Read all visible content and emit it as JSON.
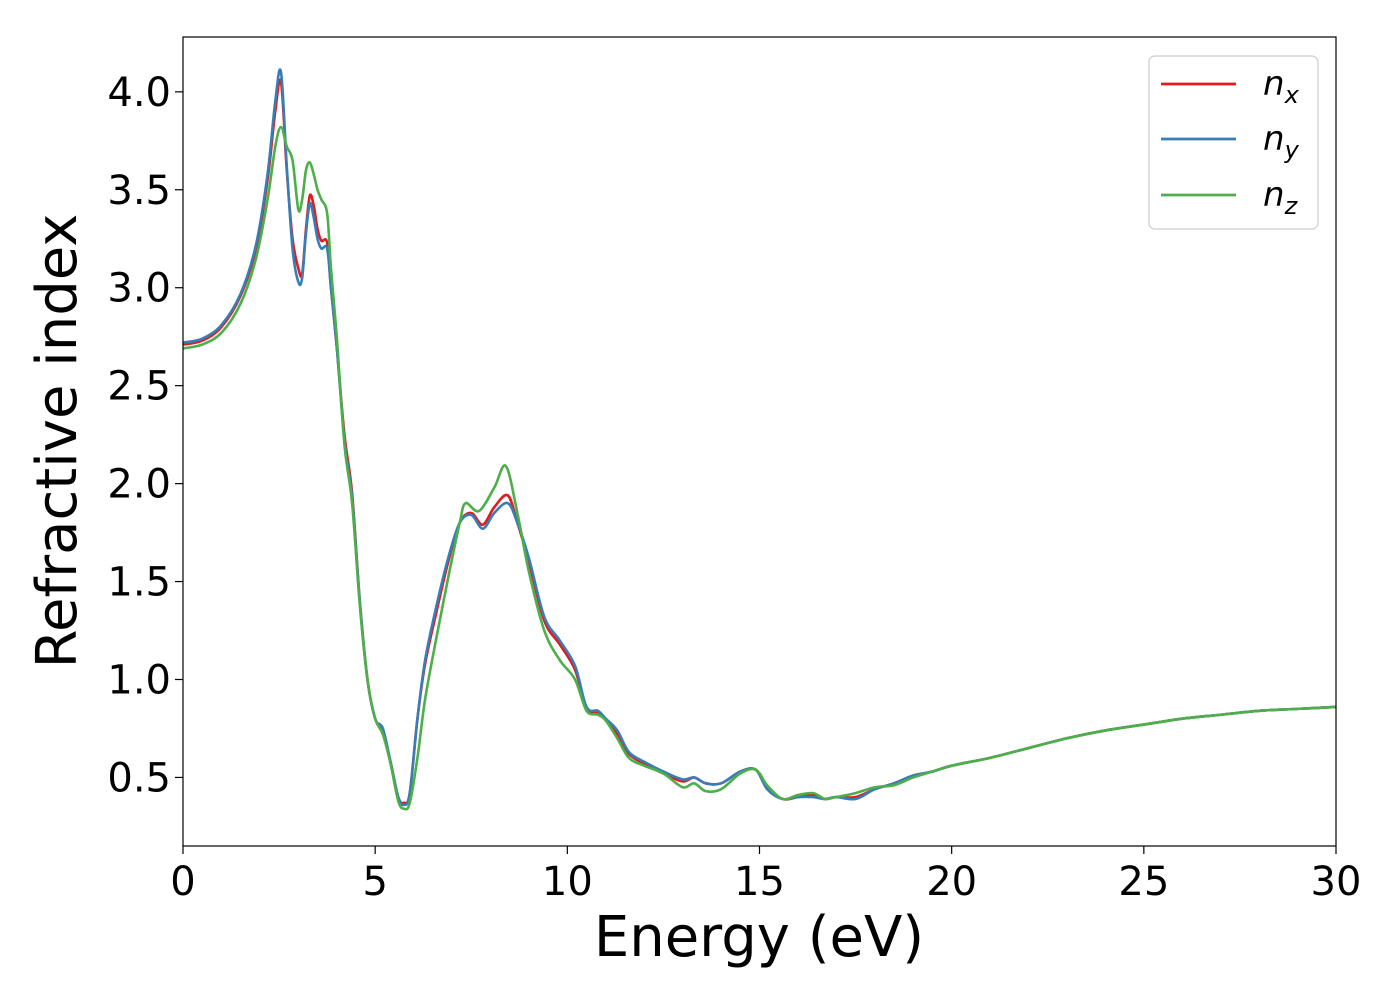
{
  "chart_data": {
    "type": "line",
    "xlabel": "Energy (eV)",
    "ylabel": "Refractive index",
    "xlim": [
      0,
      30
    ],
    "ylim": [
      0.15,
      4.28
    ],
    "x_ticks": [
      0,
      5,
      10,
      15,
      20,
      25,
      30
    ],
    "x_tick_labels": [
      "0",
      "5",
      "10",
      "15",
      "20",
      "25",
      "30"
    ],
    "y_ticks": [
      0.5,
      1.0,
      1.5,
      2.0,
      2.5,
      3.0,
      3.5,
      4.0
    ],
    "y_tick_labels": [
      "0.5",
      "1.0",
      "1.5",
      "2.0",
      "2.5",
      "3.0",
      "3.5",
      "4.0"
    ],
    "grid": false,
    "legend_position": "top-right",
    "series": [
      {
        "name": "n_x",
        "label_base": "n",
        "label_sub": "x",
        "color": "#e41a1c",
        "points": [
          [
            0.0,
            2.71
          ],
          [
            0.5,
            2.73
          ],
          [
            1.0,
            2.8
          ],
          [
            1.5,
            2.96
          ],
          [
            1.9,
            3.2
          ],
          [
            2.2,
            3.55
          ],
          [
            2.4,
            3.9
          ],
          [
            2.55,
            4.05
          ],
          [
            2.7,
            3.6
          ],
          [
            2.85,
            3.25
          ],
          [
            3.0,
            3.1
          ],
          [
            3.1,
            3.07
          ],
          [
            3.2,
            3.3
          ],
          [
            3.3,
            3.47
          ],
          [
            3.4,
            3.42
          ],
          [
            3.5,
            3.3
          ],
          [
            3.6,
            3.24
          ],
          [
            3.75,
            3.23
          ],
          [
            3.85,
            3.0
          ],
          [
            4.0,
            2.7
          ],
          [
            4.2,
            2.25
          ],
          [
            4.4,
            1.95
          ],
          [
            4.6,
            1.4
          ],
          [
            4.8,
            1.0
          ],
          [
            5.0,
            0.8
          ],
          [
            5.2,
            0.73
          ],
          [
            5.4,
            0.58
          ],
          [
            5.6,
            0.4
          ],
          [
            5.75,
            0.37
          ],
          [
            5.9,
            0.42
          ],
          [
            6.1,
            0.8
          ],
          [
            6.3,
            1.08
          ],
          [
            6.6,
            1.35
          ],
          [
            6.9,
            1.6
          ],
          [
            7.2,
            1.8
          ],
          [
            7.5,
            1.85
          ],
          [
            7.8,
            1.79
          ],
          [
            8.1,
            1.88
          ],
          [
            8.45,
            1.94
          ],
          [
            8.7,
            1.8
          ],
          [
            9.0,
            1.6
          ],
          [
            9.4,
            1.3
          ],
          [
            9.8,
            1.18
          ],
          [
            10.2,
            1.05
          ],
          [
            10.5,
            0.85
          ],
          [
            10.8,
            0.83
          ],
          [
            11.0,
            0.8
          ],
          [
            11.3,
            0.72
          ],
          [
            11.6,
            0.62
          ],
          [
            12.0,
            0.57
          ],
          [
            12.5,
            0.52
          ],
          [
            13.0,
            0.48
          ],
          [
            13.3,
            0.5
          ],
          [
            13.6,
            0.47
          ],
          [
            14.0,
            0.47
          ],
          [
            14.5,
            0.53
          ],
          [
            14.9,
            0.54
          ],
          [
            15.2,
            0.45
          ],
          [
            15.6,
            0.39
          ],
          [
            16.0,
            0.4
          ],
          [
            16.4,
            0.41
          ],
          [
            16.7,
            0.39
          ],
          [
            17.0,
            0.4
          ],
          [
            17.5,
            0.4
          ],
          [
            18.0,
            0.44
          ],
          [
            18.5,
            0.47
          ],
          [
            19.0,
            0.51
          ],
          [
            19.5,
            0.53
          ],
          [
            20.0,
            0.56
          ],
          [
            21.0,
            0.6
          ],
          [
            22.0,
            0.65
          ],
          [
            23.0,
            0.7
          ],
          [
            24.0,
            0.74
          ],
          [
            25.0,
            0.77
          ],
          [
            26.0,
            0.8
          ],
          [
            27.0,
            0.82
          ],
          [
            28.0,
            0.84
          ],
          [
            29.0,
            0.85
          ],
          [
            30.0,
            0.86
          ]
        ]
      },
      {
        "name": "n_y",
        "label_base": "n",
        "label_sub": "y",
        "color": "#377eb8",
        "points": [
          [
            0.0,
            2.72
          ],
          [
            0.5,
            2.74
          ],
          [
            1.0,
            2.81
          ],
          [
            1.5,
            2.97
          ],
          [
            1.9,
            3.22
          ],
          [
            2.2,
            3.58
          ],
          [
            2.4,
            3.95
          ],
          [
            2.55,
            4.1
          ],
          [
            2.7,
            3.62
          ],
          [
            2.85,
            3.2
          ],
          [
            3.0,
            3.03
          ],
          [
            3.1,
            3.05
          ],
          [
            3.2,
            3.28
          ],
          [
            3.3,
            3.43
          ],
          [
            3.4,
            3.36
          ],
          [
            3.5,
            3.25
          ],
          [
            3.6,
            3.2
          ],
          [
            3.75,
            3.2
          ],
          [
            3.85,
            3.0
          ],
          [
            4.0,
            2.7
          ],
          [
            4.2,
            2.22
          ],
          [
            4.4,
            1.93
          ],
          [
            4.6,
            1.4
          ],
          [
            4.8,
            1.0
          ],
          [
            5.0,
            0.8
          ],
          [
            5.2,
            0.75
          ],
          [
            5.4,
            0.58
          ],
          [
            5.6,
            0.4
          ],
          [
            5.75,
            0.36
          ],
          [
            5.9,
            0.42
          ],
          [
            6.1,
            0.8
          ],
          [
            6.3,
            1.1
          ],
          [
            6.6,
            1.38
          ],
          [
            6.9,
            1.62
          ],
          [
            7.2,
            1.8
          ],
          [
            7.5,
            1.84
          ],
          [
            7.8,
            1.77
          ],
          [
            8.1,
            1.85
          ],
          [
            8.45,
            1.9
          ],
          [
            8.7,
            1.8
          ],
          [
            9.0,
            1.62
          ],
          [
            9.4,
            1.32
          ],
          [
            9.8,
            1.2
          ],
          [
            10.2,
            1.07
          ],
          [
            10.5,
            0.86
          ],
          [
            10.8,
            0.84
          ],
          [
            11.0,
            0.8
          ],
          [
            11.3,
            0.74
          ],
          [
            11.6,
            0.63
          ],
          [
            12.0,
            0.58
          ],
          [
            12.5,
            0.53
          ],
          [
            13.0,
            0.49
          ],
          [
            13.3,
            0.5
          ],
          [
            13.6,
            0.47
          ],
          [
            14.0,
            0.47
          ],
          [
            14.5,
            0.53
          ],
          [
            14.9,
            0.54
          ],
          [
            15.2,
            0.44
          ],
          [
            15.6,
            0.39
          ],
          [
            16.0,
            0.4
          ],
          [
            16.4,
            0.4
          ],
          [
            16.7,
            0.39
          ],
          [
            17.0,
            0.4
          ],
          [
            17.5,
            0.39
          ],
          [
            18.0,
            0.44
          ],
          [
            18.5,
            0.47
          ],
          [
            19.0,
            0.51
          ],
          [
            19.5,
            0.53
          ],
          [
            20.0,
            0.56
          ],
          [
            21.0,
            0.6
          ],
          [
            22.0,
            0.65
          ],
          [
            23.0,
            0.7
          ],
          [
            24.0,
            0.74
          ],
          [
            25.0,
            0.77
          ],
          [
            26.0,
            0.8
          ],
          [
            27.0,
            0.82
          ],
          [
            28.0,
            0.84
          ],
          [
            29.0,
            0.85
          ],
          [
            30.0,
            0.86
          ]
        ]
      },
      {
        "name": "n_z",
        "label_base": "n",
        "label_sub": "z",
        "color": "#4daf4a",
        "points": [
          [
            0.0,
            2.69
          ],
          [
            0.5,
            2.71
          ],
          [
            1.0,
            2.77
          ],
          [
            1.5,
            2.92
          ],
          [
            1.9,
            3.15
          ],
          [
            2.2,
            3.45
          ],
          [
            2.4,
            3.72
          ],
          [
            2.55,
            3.82
          ],
          [
            2.7,
            3.72
          ],
          [
            2.85,
            3.65
          ],
          [
            3.0,
            3.4
          ],
          [
            3.1,
            3.45
          ],
          [
            3.2,
            3.6
          ],
          [
            3.3,
            3.64
          ],
          [
            3.4,
            3.58
          ],
          [
            3.5,
            3.5
          ],
          [
            3.6,
            3.45
          ],
          [
            3.75,
            3.38
          ],
          [
            3.85,
            3.1
          ],
          [
            4.0,
            2.75
          ],
          [
            4.2,
            2.2
          ],
          [
            4.4,
            1.9
          ],
          [
            4.6,
            1.38
          ],
          [
            4.8,
            1.0
          ],
          [
            5.0,
            0.8
          ],
          [
            5.2,
            0.72
          ],
          [
            5.4,
            0.57
          ],
          [
            5.6,
            0.38
          ],
          [
            5.75,
            0.34
          ],
          [
            5.9,
            0.37
          ],
          [
            6.1,
            0.6
          ],
          [
            6.3,
            0.9
          ],
          [
            6.6,
            1.22
          ],
          [
            6.9,
            1.52
          ],
          [
            7.2,
            1.8
          ],
          [
            7.35,
            1.9
          ],
          [
            7.7,
            1.86
          ],
          [
            8.1,
            1.98
          ],
          [
            8.4,
            2.09
          ],
          [
            8.7,
            1.85
          ],
          [
            9.0,
            1.55
          ],
          [
            9.4,
            1.25
          ],
          [
            9.8,
            1.1
          ],
          [
            10.2,
            1.0
          ],
          [
            10.5,
            0.84
          ],
          [
            10.8,
            0.82
          ],
          [
            11.0,
            0.79
          ],
          [
            11.3,
            0.7
          ],
          [
            11.6,
            0.6
          ],
          [
            12.0,
            0.56
          ],
          [
            12.5,
            0.52
          ],
          [
            13.0,
            0.45
          ],
          [
            13.3,
            0.47
          ],
          [
            13.6,
            0.43
          ],
          [
            14.0,
            0.44
          ],
          [
            14.5,
            0.52
          ],
          [
            14.9,
            0.54
          ],
          [
            15.2,
            0.46
          ],
          [
            15.6,
            0.39
          ],
          [
            16.0,
            0.41
          ],
          [
            16.4,
            0.42
          ],
          [
            16.7,
            0.39
          ],
          [
            17.0,
            0.4
          ],
          [
            17.5,
            0.42
          ],
          [
            18.0,
            0.45
          ],
          [
            18.5,
            0.46
          ],
          [
            19.0,
            0.5
          ],
          [
            19.5,
            0.53
          ],
          [
            20.0,
            0.56
          ],
          [
            21.0,
            0.6
          ],
          [
            22.0,
            0.65
          ],
          [
            23.0,
            0.7
          ],
          [
            24.0,
            0.74
          ],
          [
            25.0,
            0.77
          ],
          [
            26.0,
            0.8
          ],
          [
            27.0,
            0.82
          ],
          [
            28.0,
            0.84
          ],
          [
            29.0,
            0.85
          ],
          [
            30.0,
            0.86
          ]
        ]
      }
    ]
  }
}
